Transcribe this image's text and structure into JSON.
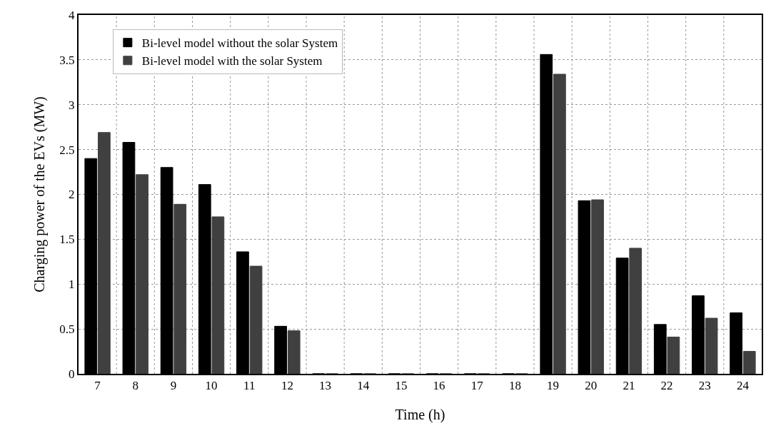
{
  "chart_data": {
    "type": "bar",
    "xlabel": "Time (h)",
    "ylabel": "Charging power of the EVs (MW)",
    "categories": [
      "7",
      "8",
      "9",
      "10",
      "11",
      "12",
      "13",
      "14",
      "15",
      "16",
      "17",
      "18",
      "19",
      "20",
      "21",
      "22",
      "23",
      "24"
    ],
    "series": [
      {
        "name": "Bi-level model without the solar System",
        "color": "#000000",
        "values": [
          2.4,
          2.58,
          2.3,
          2.11,
          1.36,
          0.53,
          0,
          0,
          0,
          0,
          0,
          0,
          3.56,
          1.93,
          1.29,
          0.55,
          0.87,
          0.68
        ]
      },
      {
        "name": "Bi-level model with the solar System",
        "color": "#404040",
        "values": [
          2.69,
          2.22,
          1.89,
          1.75,
          1.2,
          0.48,
          0,
          0,
          0,
          0,
          0,
          0,
          3.34,
          1.94,
          1.4,
          0.41,
          0.62,
          0.25
        ]
      }
    ],
    "ylim": [
      0,
      4
    ],
    "yticks": [
      0,
      0.5,
      1,
      1.5,
      2,
      2.5,
      3,
      3.5,
      4
    ],
    "grid": true,
    "legend": "top left"
  }
}
